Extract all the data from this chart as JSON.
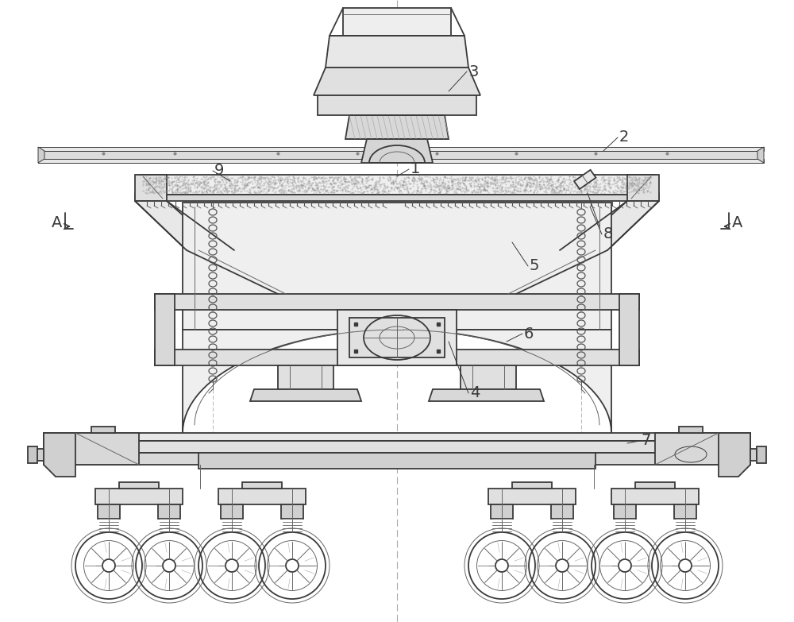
{
  "bg_color": "#ffffff",
  "lc": "#3a3a3a",
  "lc_thin": "#666666",
  "lc_vthim": "#999999",
  "fc_light": "#f0f0f0",
  "fc_mid": "#e0e0e0",
  "fc_dark": "#cccccc",
  "fc_stipple": "#c8c8c8"
}
